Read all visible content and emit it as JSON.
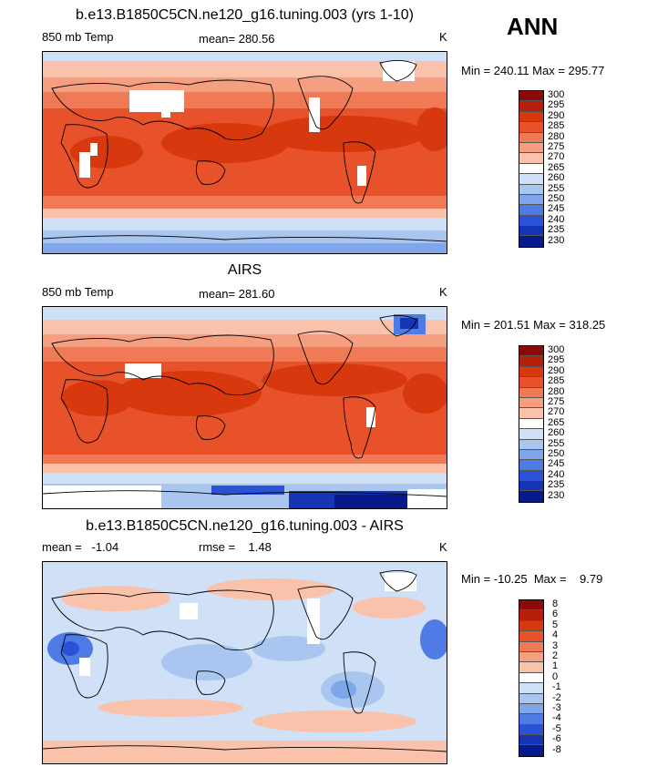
{
  "season": "ANN",
  "panels": [
    {
      "title": "b.e13.B1850C5CN.ne120_g16.tuning.003 (yrs 1-10)",
      "left_label": "850 mb Temp",
      "center_label": "mean= 280.56",
      "units": "K",
      "minmax": "Min = 240.11  Max = 295.77",
      "colorbar": {
        "levels": [
          "300",
          "295",
          "290",
          "285",
          "280",
          "275",
          "270",
          "265",
          "260",
          "255",
          "250",
          "245",
          "240",
          "235",
          "230"
        ],
        "colors": [
          "#8a0a0a",
          "#b51e08",
          "#d8380e",
          "#e8522a",
          "#f07a55",
          "#f59e80",
          "#fac2aa",
          "#ffffff",
          "#cfe0f7",
          "#a8c6f0",
          "#7fa5ea",
          "#4f7be5",
          "#2a52d6",
          "#1535b5",
          "#061a8c"
        ]
      }
    },
    {
      "title": "AIRS",
      "left_label": "850 mb Temp",
      "center_label": "mean= 281.60",
      "units": "K",
      "minmax": "Min = 201.51  Max = 318.25",
      "colorbar": {
        "levels": [
          "300",
          "295",
          "290",
          "285",
          "280",
          "275",
          "270",
          "265",
          "260",
          "255",
          "250",
          "245",
          "240",
          "235",
          "230"
        ],
        "colors": [
          "#8a0a0a",
          "#b51e08",
          "#d8380e",
          "#e8522a",
          "#f07a55",
          "#f59e80",
          "#fac2aa",
          "#ffffff",
          "#cfe0f7",
          "#a8c6f0",
          "#7fa5ea",
          "#4f7be5",
          "#2a52d6",
          "#1535b5",
          "#061a8c"
        ]
      }
    },
    {
      "title": "b.e13.B1850C5CN.ne120_g16.tuning.003 - AIRS",
      "left_label": "mean =   -1.04",
      "center_label": "rmse =    1.48",
      "units": "K",
      "minmax": "Min = -10.25  Max =    9.79",
      "colorbar": {
        "levels": [
          "8",
          "6",
          "5",
          "4",
          "3",
          "2",
          "1",
          "0",
          "-1",
          "-2",
          "-3",
          "-4",
          "-5",
          "-6",
          "-8"
        ],
        "colors": [
          "#8a0a0a",
          "#b51e08",
          "#d8380e",
          "#e8522a",
          "#f07a55",
          "#f59e80",
          "#fac2aa",
          "#ffffff",
          "#cfe0f7",
          "#a8c6f0",
          "#7fa5ea",
          "#4f7be5",
          "#2a52d6",
          "#1535b5",
          "#061a8c"
        ]
      }
    }
  ]
}
